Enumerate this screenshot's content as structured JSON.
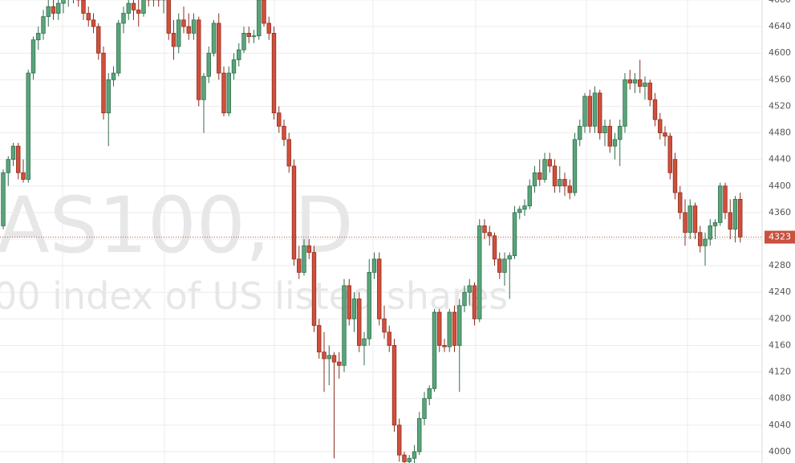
{
  "chart_data": {
    "type": "candlestick",
    "watermark": "AS100, D",
    "watermark_subtitle": "00 index of US listed shares",
    "ylim": [
      3983,
      4680
    ],
    "yticks": [
      4000,
      4040,
      4080,
      4120,
      4160,
      4200,
      4240,
      4280,
      4320,
      4360,
      4400,
      4440,
      4480,
      4520,
      4560,
      4600,
      4640,
      4680
    ],
    "grid": true,
    "up_color": "#5aa57b",
    "down_color": "#d0503c",
    "last_price": 4323,
    "values": [
      [
        4340,
        4425,
        4335,
        4420
      ],
      [
        4420,
        4445,
        4400,
        4440
      ],
      [
        4440,
        4465,
        4430,
        4460
      ],
      [
        4460,
        4465,
        4410,
        4420
      ],
      [
        4420,
        4440,
        4405,
        4410
      ],
      [
        4410,
        4575,
        4405,
        4570
      ],
      [
        4570,
        4625,
        4560,
        4620
      ],
      [
        4620,
        4640,
        4605,
        4630
      ],
      [
        4630,
        4665,
        4620,
        4655
      ],
      [
        4655,
        4680,
        4640,
        4670
      ],
      [
        4670,
        4685,
        4650,
        4660
      ],
      [
        4660,
        4685,
        4650,
        4675
      ],
      [
        4675,
        4690,
        4660,
        4685
      ],
      [
        4685,
        4700,
        4670,
        4690
      ],
      [
        4690,
        4700,
        4675,
        4685
      ],
      [
        4685,
        4695,
        4670,
        4680
      ],
      [
        4680,
        4690,
        4650,
        4660
      ],
      [
        4660,
        4670,
        4640,
        4650
      ],
      [
        4650,
        4660,
        4630,
        4640
      ],
      [
        4640,
        4645,
        4590,
        4600
      ],
      [
        4600,
        4610,
        4500,
        4510
      ],
      [
        4510,
        4570,
        4460,
        4560
      ],
      [
        4560,
        4580,
        4550,
        4570
      ],
      [
        4570,
        4650,
        4565,
        4645
      ],
      [
        4645,
        4670,
        4630,
        4660
      ],
      [
        4660,
        4690,
        4650,
        4675
      ],
      [
        4675,
        4690,
        4650,
        4665
      ],
      [
        4665,
        4680,
        4640,
        4660
      ],
      [
        4660,
        4690,
        4655,
        4685
      ],
      [
        4685,
        4700,
        4670,
        4680
      ],
      [
        4680,
        4700,
        4670,
        4685
      ],
      [
        4685,
        4700,
        4670,
        4680
      ],
      [
        4680,
        4700,
        4660,
        4690
      ],
      [
        4690,
        4695,
        4620,
        4630
      ],
      [
        4630,
        4650,
        4590,
        4610
      ],
      [
        4610,
        4660,
        4600,
        4650
      ],
      [
        4650,
        4670,
        4630,
        4640
      ],
      [
        4640,
        4660,
        4620,
        4630
      ],
      [
        4630,
        4660,
        4620,
        4650
      ],
      [
        4650,
        4655,
        4520,
        4530
      ],
      [
        4530,
        4570,
        4480,
        4565
      ],
      [
        4565,
        4610,
        4555,
        4600
      ],
      [
        4600,
        4650,
        4595,
        4645
      ],
      [
        4645,
        4660,
        4560,
        4570
      ],
      [
        4570,
        4580,
        4505,
        4510
      ],
      [
        4510,
        4580,
        4505,
        4570
      ],
      [
        4570,
        4600,
        4560,
        4590
      ],
      [
        4590,
        4615,
        4580,
        4605
      ],
      [
        4605,
        4640,
        4600,
        4630
      ],
      [
        4630,
        4640,
        4615,
        4625
      ],
      [
        4625,
        4635,
        4615,
        4626
      ],
      [
        4626,
        4690,
        4620,
        4680
      ],
      [
        4680,
        4690,
        4640,
        4645
      ],
      [
        4645,
        4655,
        4620,
        4630
      ],
      [
        4630,
        4640,
        4500,
        4510
      ],
      [
        4510,
        4520,
        4480,
        4490
      ],
      [
        4490,
        4500,
        4460,
        4470
      ],
      [
        4470,
        4480,
        4420,
        4430
      ],
      [
        4430,
        4440,
        4280,
        4290
      ],
      [
        4290,
        4310,
        4260,
        4270
      ],
      [
        4270,
        4320,
        4265,
        4310
      ],
      [
        4310,
        4320,
        4290,
        4300
      ],
      [
        4300,
        4310,
        4180,
        4190
      ],
      [
        4190,
        4200,
        4140,
        4150
      ],
      [
        4150,
        4180,
        4090,
        4140
      ],
      [
        4140,
        4160,
        4100,
        4145
      ],
      [
        4145,
        4150,
        3990,
        4135
      ],
      [
        4135,
        4150,
        4110,
        4130
      ],
      [
        4130,
        4260,
        4120,
        4250
      ],
      [
        4250,
        4260,
        4190,
        4200
      ],
      [
        4200,
        4240,
        4180,
        4230
      ],
      [
        4230,
        4240,
        4150,
        4160
      ],
      [
        4160,
        4180,
        4130,
        4170
      ],
      [
        4170,
        4290,
        4160,
        4270
      ],
      [
        4270,
        4300,
        4260,
        4290
      ],
      [
        4290,
        4300,
        4190,
        4200
      ],
      [
        4200,
        4220,
        4170,
        4180
      ],
      [
        4180,
        4190,
        4150,
        4160
      ],
      [
        4160,
        4170,
        4030,
        4040
      ],
      [
        4040,
        4050,
        3985,
        3995
      ],
      [
        3995,
        4000,
        3970,
        3985
      ],
      [
        3985,
        3995,
        3960,
        3990
      ],
      [
        3990,
        4010,
        3970,
        4000
      ],
      [
        4000,
        4060,
        3995,
        4050
      ],
      [
        4050,
        4090,
        4040,
        4080
      ],
      [
        4080,
        4100,
        4070,
        4095
      ],
      [
        4095,
        4215,
        4090,
        4210
      ],
      [
        4210,
        4215,
        4150,
        4160
      ],
      [
        4160,
        4170,
        4150,
        4158
      ],
      [
        4158,
        4215,
        4150,
        4210
      ],
      [
        4210,
        4220,
        4150,
        4160
      ],
      [
        4160,
        4230,
        4090,
        4220
      ],
      [
        4220,
        4250,
        4210,
        4240
      ],
      [
        4240,
        4260,
        4220,
        4250
      ],
      [
        4250,
        4255,
        4190,
        4200
      ],
      [
        4200,
        4350,
        4195,
        4340
      ],
      [
        4340,
        4350,
        4320,
        4330
      ],
      [
        4330,
        4340,
        4310,
        4325
      ],
      [
        4325,
        4330,
        4280,
        4290
      ],
      [
        4290,
        4300,
        4260,
        4270
      ],
      [
        4270,
        4300,
        4250,
        4290
      ],
      [
        4290,
        4300,
        4230,
        4295
      ],
      [
        4295,
        4370,
        4290,
        4360
      ],
      [
        4360,
        4370,
        4350,
        4365
      ],
      [
        4365,
        4380,
        4355,
        4370
      ],
      [
        4370,
        4410,
        4365,
        4400
      ],
      [
        4400,
        4430,
        4390,
        4420
      ],
      [
        4420,
        4440,
        4400,
        4410
      ],
      [
        4410,
        4450,
        4405,
        4440
      ],
      [
        4440,
        4450,
        4420,
        4430
      ],
      [
        4430,
        4440,
        4390,
        4400
      ],
      [
        4400,
        4430,
        4390,
        4410
      ],
      [
        4410,
        4420,
        4385,
        4400
      ],
      [
        4400,
        4410,
        4380,
        4390
      ],
      [
        4390,
        4480,
        4385,
        4470
      ],
      [
        4470,
        4500,
        4460,
        4490
      ],
      [
        4490,
        4540,
        4480,
        4535
      ],
      [
        4535,
        4545,
        4480,
        4490
      ],
      [
        4490,
        4550,
        4480,
        4540
      ],
      [
        4540,
        4545,
        4470,
        4480
      ],
      [
        4480,
        4500,
        4460,
        4490
      ],
      [
        4490,
        4500,
        4450,
        4460
      ],
      [
        4460,
        4480,
        4440,
        4470
      ],
      [
        4470,
        4500,
        4430,
        4490
      ],
      [
        4490,
        4570,
        4480,
        4560
      ],
      [
        4560,
        4575,
        4545,
        4555
      ],
      [
        4555,
        4570,
        4540,
        4560
      ],
      [
        4560,
        4590,
        4540,
        4550
      ],
      [
        4550,
        4565,
        4530,
        4555
      ],
      [
        4555,
        4560,
        4520,
        4530
      ],
      [
        4530,
        4540,
        4490,
        4500
      ],
      [
        4500,
        4510,
        4470,
        4480
      ],
      [
        4480,
        4490,
        4460,
        4475
      ],
      [
        4475,
        4480,
        4410,
        4420
      ],
      [
        4440,
        4450,
        4380,
        4390
      ],
      [
        4390,
        4400,
        4350,
        4360
      ],
      [
        4360,
        4380,
        4310,
        4330
      ],
      [
        4330,
        4380,
        4320,
        4370
      ],
      [
        4370,
        4375,
        4320,
        4330
      ],
      [
        4330,
        4340,
        4300,
        4310
      ],
      [
        4310,
        4330,
        4280,
        4320
      ],
      [
        4320,
        4350,
        4310,
        4340
      ],
      [
        4340,
        4350,
        4320,
        4345
      ],
      [
        4345,
        4405,
        4340,
        4400
      ],
      [
        4400,
        4405,
        4350,
        4360
      ],
      [
        4360,
        4380,
        4320,
        4335
      ],
      [
        4335,
        4385,
        4315,
        4380
      ],
      [
        4380,
        4390,
        4315,
        4323
      ]
    ]
  }
}
